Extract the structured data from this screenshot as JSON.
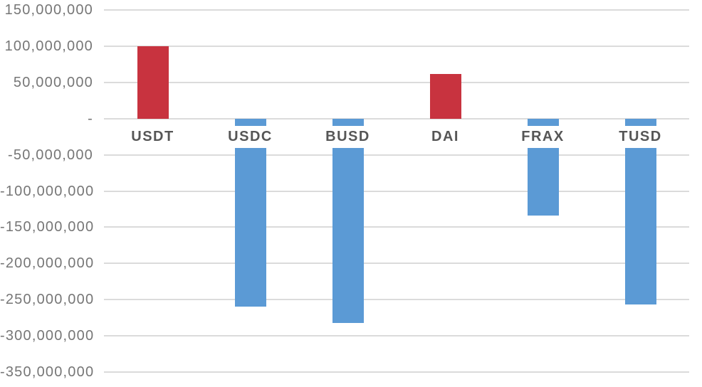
{
  "chart_data": {
    "type": "bar",
    "categories": [
      "USDT",
      "USDC",
      "BUSD",
      "DAI",
      "FRAX",
      "TUSD"
    ],
    "values": [
      100000000,
      -260000000,
      -282000000,
      62000000,
      -134000000,
      -257000000
    ],
    "title": "",
    "xlabel": "",
    "ylabel": "",
    "ylim": [
      -350000000,
      150000000
    ],
    "ytick_interval": 50000000,
    "ytick_labels": [
      "150,000,000",
      "100,000,000",
      "50,000,000",
      "-",
      "-50,000,000",
      "-100,000,000",
      "-150,000,000",
      "-200,000,000",
      "-250,000,000",
      "-300,000,000",
      "-350,000,000"
    ],
    "grid": true,
    "legend": false,
    "colors": {
      "positive_bar": "#C8333F",
      "negative_bar": "#5B9AD5",
      "gridline": "#DBDBDB",
      "axis_label_text": "#767676",
      "category_label_text": "#565656",
      "background": "#FFFFFF"
    }
  }
}
